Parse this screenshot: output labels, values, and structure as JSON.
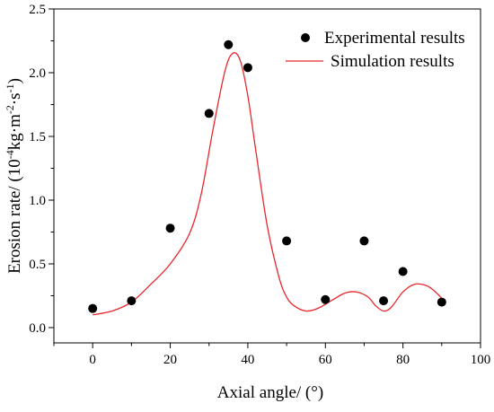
{
  "chart_data": {
    "type": "scatter",
    "title": "",
    "xlabel": "Axial angle/ (°)",
    "ylabel": {
      "main": "Erosion rate/ (10",
      "exp1": "-4",
      "mid": "kg·m",
      "exp2": "-2",
      "mid2": "·s",
      "exp3": "-1",
      "end": ")"
    },
    "xlim": [
      -10,
      100
    ],
    "ylim": [
      -0.12,
      2.5
    ],
    "xticks": [
      0,
      20,
      40,
      60,
      80,
      100
    ],
    "xtick_labels": [
      "0",
      "20",
      "40",
      "60",
      "80",
      "100"
    ],
    "yticks": [
      0.0,
      0.5,
      1.0,
      1.5,
      2.0,
      2.5
    ],
    "ytick_labels": [
      "0.0",
      "0.5",
      "1.0",
      "1.5",
      "2.0",
      "2.5"
    ],
    "legend_position": "top-right",
    "grid": false,
    "series": [
      {
        "name": "Experimental results",
        "kind": "scatter",
        "color": "#000000",
        "x": [
          0,
          10,
          20,
          30,
          35,
          40,
          50,
          60,
          70,
          75,
          80,
          90
        ],
        "y": [
          0.15,
          0.21,
          0.78,
          1.68,
          2.22,
          2.04,
          0.68,
          0.22,
          0.68,
          0.21,
          0.44,
          0.2
        ]
      },
      {
        "name": "Simulation results",
        "kind": "line",
        "color": "#e8262d",
        "x": [
          0,
          5,
          10,
          15,
          20,
          25,
          28,
          31,
          34,
          36,
          38,
          40,
          42,
          45,
          48,
          50,
          52,
          55,
          58,
          62,
          65,
          68,
          71,
          73,
          75,
          77,
          80,
          83,
          86,
          88,
          90
        ],
        "y": [
          0.1,
          0.13,
          0.2,
          0.34,
          0.5,
          0.74,
          1.05,
          1.55,
          2.0,
          2.15,
          2.1,
          1.82,
          1.4,
          0.8,
          0.4,
          0.24,
          0.17,
          0.13,
          0.15,
          0.22,
          0.27,
          0.28,
          0.24,
          0.17,
          0.13,
          0.16,
          0.28,
          0.34,
          0.33,
          0.29,
          0.23
        ]
      }
    ]
  }
}
